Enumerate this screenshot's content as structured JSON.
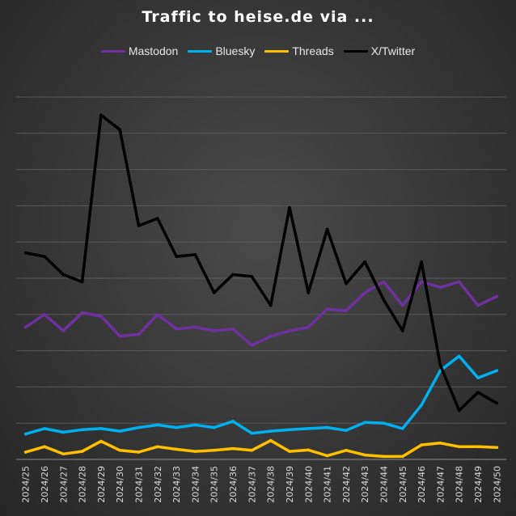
{
  "chart_data": {
    "type": "line",
    "title": "Traffic to heise.de via ...",
    "xlabel": "",
    "ylabel": "",
    "ylim": [
      0,
      10
    ],
    "grid": true,
    "legend": "top",
    "categories": [
      "2024/25",
      "2024/26",
      "2024/27",
      "2024/28",
      "2024/29",
      "2024/30",
      "2024/31",
      "2024/32",
      "2024/33",
      "2024/34",
      "2024/35",
      "2024/36",
      "2024/37",
      "2024/38",
      "2024/39",
      "2024/40",
      "2024/41",
      "2024/42",
      "2024/43",
      "2024/44",
      "2024/45",
      "2024/46",
      "2024/47",
      "2024/48",
      "2024/49",
      "2024/50"
    ],
    "series": [
      {
        "name": "Mastodon",
        "color": "#7030a0",
        "values": [
          3.65,
          4.0,
          3.55,
          4.05,
          3.95,
          3.4,
          3.45,
          4.0,
          3.6,
          3.65,
          3.55,
          3.6,
          3.15,
          3.4,
          3.55,
          3.65,
          4.15,
          4.1,
          4.6,
          4.9,
          4.25,
          4.9,
          4.75,
          4.9,
          4.25,
          4.5
        ]
      },
      {
        "name": "Bluesky",
        "color": "#00b0f0",
        "values": [
          0.7,
          0.85,
          0.75,
          0.82,
          0.85,
          0.78,
          0.88,
          0.95,
          0.88,
          0.95,
          0.88,
          1.05,
          0.72,
          0.78,
          0.82,
          0.85,
          0.88,
          0.8,
          1.02,
          1.0,
          0.85,
          1.5,
          2.45,
          2.85,
          2.25,
          2.45
        ]
      },
      {
        "name": "Threads",
        "color": "#ffc000",
        "values": [
          0.2,
          0.35,
          0.15,
          0.22,
          0.5,
          0.25,
          0.2,
          0.35,
          0.28,
          0.22,
          0.25,
          0.3,
          0.25,
          0.52,
          0.22,
          0.26,
          0.1,
          0.25,
          0.12,
          0.08,
          0.08,
          0.4,
          0.45,
          0.35,
          0.35,
          0.33
        ]
      },
      {
        "name": "X/Twitter",
        "color": "#000000",
        "values": [
          5.7,
          5.6,
          5.1,
          4.9,
          9.5,
          9.1,
          6.45,
          6.65,
          5.6,
          5.65,
          4.6,
          5.1,
          5.05,
          4.25,
          6.95,
          4.6,
          6.35,
          4.85,
          5.45,
          4.4,
          3.55,
          5.45,
          2.6,
          1.35,
          1.85,
          1.55
        ]
      }
    ]
  }
}
